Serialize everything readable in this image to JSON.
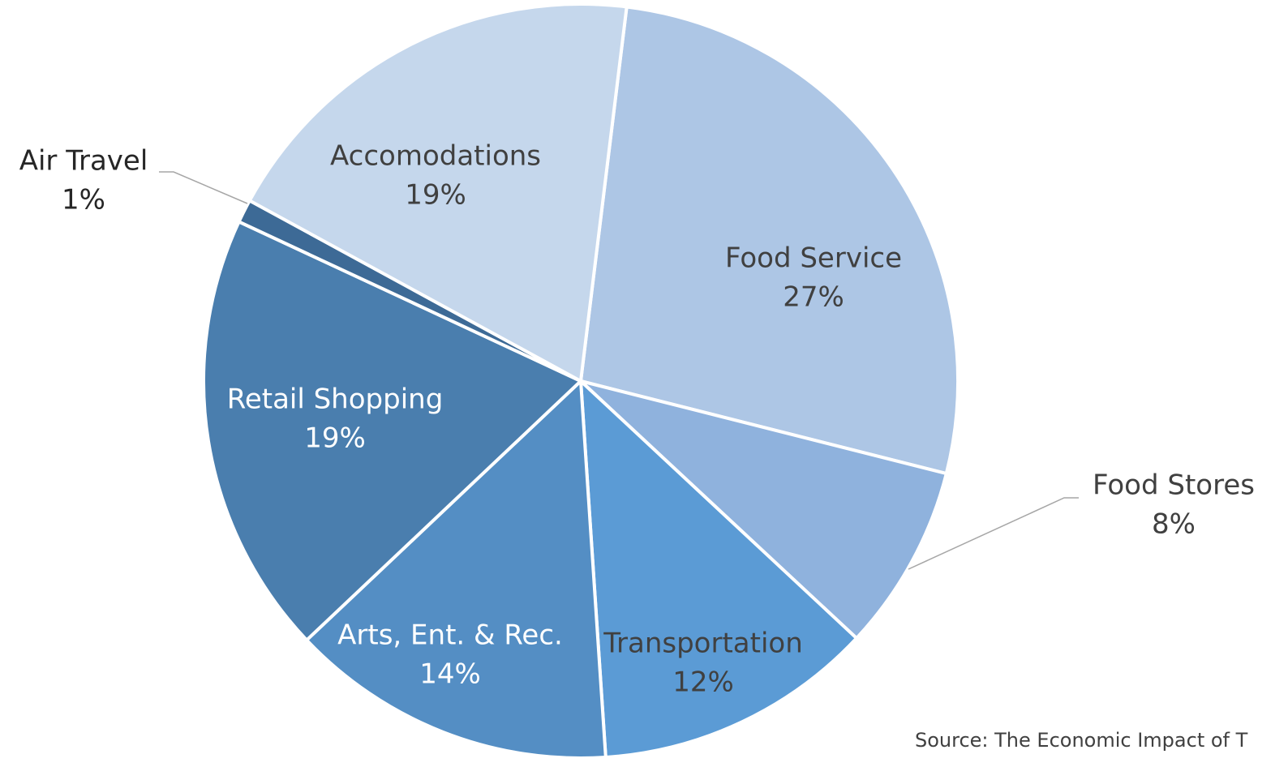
{
  "chart_data": {
    "type": "pie",
    "categories": [
      "Food Service",
      "Food Stores",
      "Transportation",
      "Arts, Ent. & Rec.",
      "Retail Shopping",
      "Air Travel",
      "Accomodations"
    ],
    "values": [
      27,
      8,
      12,
      14,
      19,
      1,
      19
    ],
    "value_labels": [
      "27%",
      "8%",
      "12%",
      "14%",
      "19%",
      "1%",
      "19%"
    ],
    "colors": [
      "#adc6e5",
      "#8fb2dd",
      "#5b9bd5",
      "#548ec4",
      "#4a7eae",
      "#3d6a96",
      "#c5d7ec"
    ],
    "source": "Source: The Economic Impact of T"
  }
}
